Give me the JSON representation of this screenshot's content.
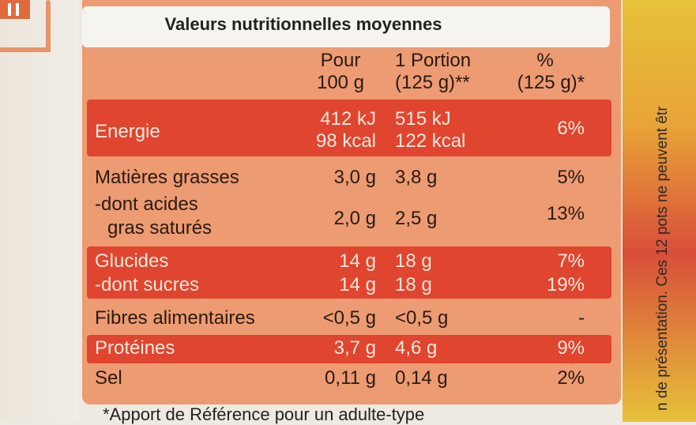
{
  "title": "Valeurs nutritionnelles moyennes",
  "headers": {
    "col2_l1": "Pour",
    "col2_l2": "100 g",
    "col3_l1": "1 Portion",
    "col3_l2": "(125 g)**",
    "col4_l1": "%",
    "col4_l2": "(125 g)*"
  },
  "rows": {
    "energie": {
      "label": "Energie",
      "v100_l1": "412 kJ",
      "v100_l2": "98 kcal",
      "vport_l1": "515 kJ",
      "vport_l2": "122 kcal",
      "pct": "6%"
    },
    "matieres": {
      "label": "Matières grasses",
      "v100": "3,0 g",
      "vport": "3,8 g",
      "pct": "5%"
    },
    "acides": {
      "label_l1": "-dont acides",
      "label_l2": "gras saturés",
      "v100": "2,0 g",
      "vport": "2,5 g",
      "pct": "13%"
    },
    "glucides": {
      "label": "Glucides",
      "v100": "14 g",
      "vport": "18 g",
      "pct": "7%"
    },
    "sucres": {
      "label": "-dont sucres",
      "v100": "14 g",
      "vport": "18 g",
      "pct": "19%"
    },
    "fibres": {
      "label": "Fibres alimentaires",
      "v100": "<0,5 g",
      "vport": "<0,5 g",
      "pct": "-"
    },
    "proteines": {
      "label": "Protéines",
      "v100": "3,7 g",
      "vport": "4,6 g",
      "pct": "9%"
    },
    "sel": {
      "label": "Sel",
      "v100": "0,11 g",
      "vport": "0,14 g",
      "pct": "2%"
    }
  },
  "footnote": "*Apport de Référence pour un adulte-type",
  "side_text": "n de présentation. Ces 12 pots ne peuvent êtr"
}
